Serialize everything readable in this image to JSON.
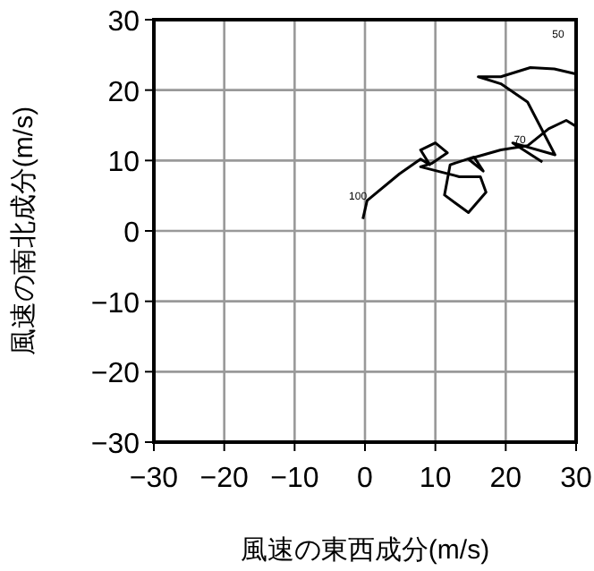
{
  "chart_data": {
    "type": "line",
    "xlabel": "風速の東西成分(m/s)",
    "ylabel": "風速の南北成分(m/s)",
    "xlim": [
      -30,
      30
    ],
    "ylim": [
      -30,
      30
    ],
    "xticks": [
      -30,
      -20,
      -10,
      0,
      10,
      20,
      30
    ],
    "yticks": [
      -30,
      -20,
      -10,
      0,
      10,
      20,
      30
    ],
    "grid": true,
    "series": [
      {
        "color": "#000000",
        "x": [
          -0.3,
          0.3,
          4.9,
          7.9,
          9.2,
          7.9,
          10,
          11.7,
          9.5,
          7.9,
          13.4,
          16.4,
          17.2,
          14.7,
          11.3,
          12.1,
          15.5,
          16.8,
          14.7,
          19.3,
          23.1,
          26.1,
          28.6,
          29.9,
          null,
          25.2,
          21,
          27,
          23.1,
          19.3,
          16.1,
          19.3,
          23.5,
          26.9,
          29.9
        ],
        "values": [
          1.7,
          4.3,
          8.1,
          10.2,
          9.4,
          11.5,
          12.5,
          11.1,
          9.6,
          9.1,
          7.7,
          7.7,
          5.5,
          2.6,
          5.1,
          9.4,
          10.5,
          8.5,
          10.2,
          11.5,
          12.1,
          14.5,
          15.7,
          14.9,
          null,
          9.8,
          12.5,
          10.8,
          18.3,
          20.9,
          21.9,
          21.9,
          23.2,
          23,
          22.3
        ]
      }
    ],
    "annotations": [
      {
        "text": "100",
        "x": -1,
        "y": 4.5
      },
      {
        "text": "70",
        "x": 22,
        "y": 12.5
      },
      "50"
    ]
  }
}
